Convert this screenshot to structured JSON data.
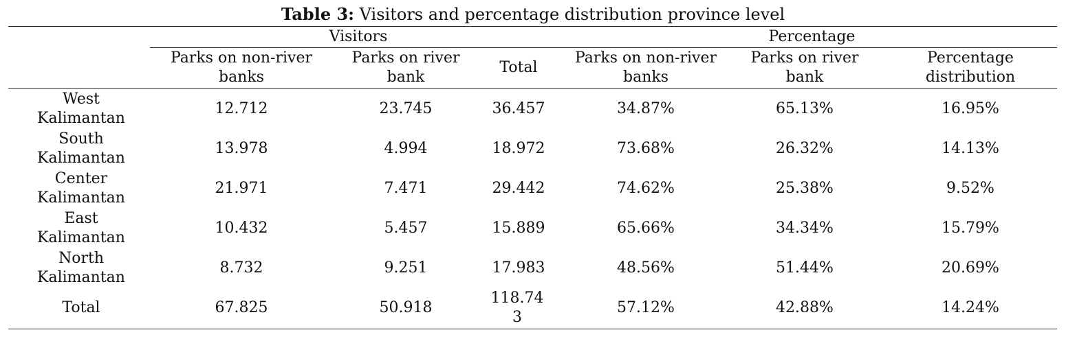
{
  "table": {
    "caption_label": "Table 3:",
    "caption_text": " Visitors and percentage distribution province level",
    "group_headers": {
      "visitors": "Visitors",
      "percentage": "Percentage"
    },
    "columns": [
      "Parks on non-river banks",
      "Parks on river bank",
      "Total",
      "Parks on non-river banks",
      "Parks on river bank",
      "Percentage distribution"
    ],
    "rows": [
      {
        "label": "West Kalimantan",
        "cells": [
          "12.712",
          "23.745",
          "36.457",
          "34.87%",
          "65.13%",
          "16.95%"
        ]
      },
      {
        "label": "South Kalimantan",
        "cells": [
          "13.978",
          "4.994",
          "18.972",
          "73.68%",
          "26.32%",
          "14.13%"
        ]
      },
      {
        "label": "Center Kalimantan",
        "cells": [
          "21.971",
          "7.471",
          "29.442",
          "74.62%",
          "25.38%",
          "9.52%"
        ]
      },
      {
        "label": "East Kalimantan",
        "cells": [
          "10.432",
          "5.457",
          "15.889",
          "65.66%",
          "34.34%",
          "15.79%"
        ]
      },
      {
        "label": "North Kalimantan",
        "cells": [
          "8.732",
          "9.251",
          "17.983",
          "48.56%",
          "51.44%",
          "20.69%"
        ]
      },
      {
        "label": "Total",
        "cells": [
          "67.825",
          "50.918",
          "118.743",
          "57.12%",
          "42.88%",
          "14.24%"
        ]
      }
    ]
  }
}
